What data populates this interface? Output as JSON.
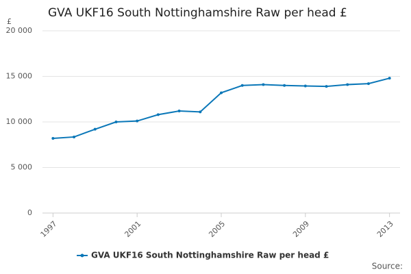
{
  "chart_data": {
    "type": "line",
    "title": "GVA UKF16 South Nottinghamshire Raw per head £",
    "y_label": "£",
    "source": "Source:",
    "x": [
      1997,
      1998,
      1999,
      2000,
      2001,
      2002,
      2003,
      2004,
      2005,
      2006,
      2007,
      2008,
      2009,
      2010,
      2011,
      2012,
      2013
    ],
    "series": [
      {
        "name": "GVA UKF16 South Nottinghamshire Raw per head £",
        "color": "#0a77b8",
        "values": [
          8200,
          8350,
          9200,
          10000,
          10100,
          10800,
          11200,
          11100,
          13200,
          14000,
          14100,
          14000,
          13950,
          13900,
          14100,
          14200,
          14800
        ]
      }
    ],
    "xlim": [
      1996.5,
      2013.5
    ],
    "xticks": [
      1997,
      2001,
      2005,
      2009,
      2013
    ],
    "ylim": [
      0,
      20000
    ],
    "yticks": [
      0,
      {
        "value": 5000,
        "label": "5 000"
      },
      {
        "value": 10000,
        "label": "10 000"
      },
      {
        "value": 15000,
        "label": "15 000"
      },
      {
        "value": 20000,
        "label": "20 000"
      }
    ],
    "grid": true
  }
}
